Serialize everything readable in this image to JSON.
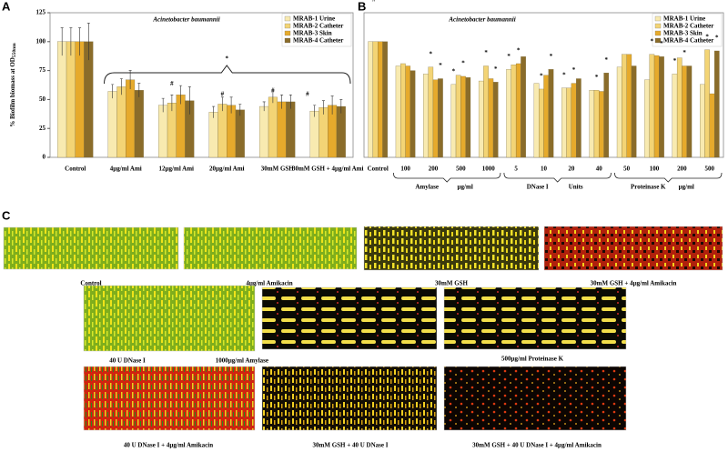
{
  "chart_data": [
    {
      "type": "bar",
      "panel": "A",
      "title": "Acinetobacter baumannii",
      "y_label": "% Biofilm biomass at OD",
      "y_label_sub": "550nm",
      "categories": [
        "Control",
        "4µg/ml Ami",
        "12µg/ml Ami",
        "20µg/ml Ami",
        "30mM GSH",
        "30mM GSH + 4µg/ml Ami"
      ],
      "series": [
        {
          "name": "MRAB-1 Urine",
          "color": "#f8eab0",
          "values": [
            100,
            57,
            45,
            39,
            44,
            40
          ],
          "errors": [
            12,
            6,
            6,
            5,
            4,
            5
          ]
        },
        {
          "name": "MRAB-2 Catheter",
          "color": "#f3d475",
          "values": [
            100,
            61,
            47,
            46,
            52,
            43
          ],
          "errors": [
            12,
            7,
            7,
            6,
            5,
            6
          ]
        },
        {
          "name": "MRAB-3 Skin",
          "color": "#e6aa2c",
          "values": [
            100,
            67,
            54,
            45,
            48,
            45
          ],
          "errors": [
            12,
            8,
            8,
            7,
            6,
            8
          ]
        },
        {
          "name": "MRAB-4 Catheter",
          "color": "#8a6c2a",
          "values": [
            100,
            58,
            49,
            41,
            48,
            44
          ],
          "errors": [
            16,
            6,
            12,
            5,
            6,
            6
          ]
        }
      ],
      "ylim": [
        0,
        125
      ],
      "yticks": [
        0,
        25,
        50,
        75,
        100,
        125
      ],
      "legend": "top-right",
      "annotations": [
        "*",
        "#",
        "#",
        "#",
        "#",
        "#"
      ]
    },
    {
      "type": "bar",
      "panel": "B",
      "title": "Acinetobacter baumannii",
      "categories": [
        "Control",
        "100",
        "200",
        "500",
        "1000",
        "5",
        "10",
        "20",
        "40",
        "50",
        "100",
        "200",
        "500"
      ],
      "groups": [
        {
          "name": "Amylase",
          "unit": "µg/ml"
        },
        {
          "name": "DNase I",
          "unit": "Units"
        },
        {
          "name": "Proteinase K",
          "unit": "µg/ml"
        }
      ],
      "series": [
        {
          "name": "MRAB-1 Urine",
          "color": "#f8eab0",
          "values": [
            100,
            79,
            72,
            63,
            66,
            76,
            64,
            60,
            58,
            78,
            67,
            72,
            63
          ]
        },
        {
          "name": "MRAB-2 Catheter",
          "color": "#f3d475",
          "values": [
            100,
            81,
            78,
            71,
            79,
            80,
            59,
            60,
            58,
            89,
            89,
            86,
            93
          ]
        },
        {
          "name": "MRAB-3 Skin",
          "color": "#e6aa2c",
          "values": [
            100,
            79,
            67,
            70,
            68,
            81,
            71,
            64,
            57,
            89,
            88,
            79,
            55
          ]
        },
        {
          "name": "MRAB-4 Catheter",
          "color": "#8a6c2a",
          "values": [
            100,
            75,
            68,
            69,
            65,
            87,
            76,
            68,
            73,
            79,
            87,
            79,
            92
          ]
        }
      ],
      "ylim": [
        0,
        125
      ],
      "legend": "top-right",
      "significance_mark": "*"
    }
  ],
  "panel_c": {
    "label": "C",
    "images": [
      "Control",
      "4µg/ml Amikacin",
      "30mM GSH",
      "30mM GSH + 4µg/ml Amikacin",
      "40 U DNase I",
      "1000µg/ml Amylase",
      "500µg/ml Proteinase K",
      "40 U DNase I + 4µg/ml Amikacin",
      "30mM GSH + 40 U DNase I",
      "30mM GSH + 40 U DNase I + 4µg/ml Amikacin"
    ]
  }
}
